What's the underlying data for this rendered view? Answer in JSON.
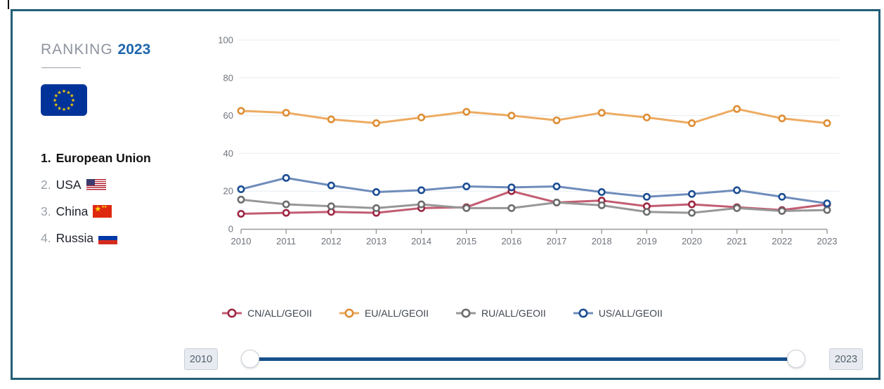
{
  "ranking": {
    "title": "RANKING",
    "year": "2023",
    "items": [
      {
        "rank": "1.",
        "name": "European Union"
      },
      {
        "rank": "2.",
        "name": "USA"
      },
      {
        "rank": "3.",
        "name": "China"
      },
      {
        "rank": "4.",
        "name": "Russia"
      }
    ]
  },
  "chart_data": {
    "type": "line",
    "x": [
      2010,
      2011,
      2012,
      2013,
      2014,
      2015,
      2016,
      2017,
      2018,
      2019,
      2020,
      2021,
      2022,
      2023
    ],
    "series": [
      {
        "name": "CN/ALL/GEOII",
        "line_color": "#c25c72",
        "marker_color": "#9c2743",
        "values": [
          8,
          8.5,
          9,
          8.5,
          11,
          11.5,
          20,
          14,
          15,
          12,
          13,
          11.5,
          10,
          13
        ]
      },
      {
        "name": "EU/ALL/GEOII",
        "line_color": "#edab62",
        "marker_color": "#dd8e35",
        "values": [
          62.5,
          61.5,
          58,
          56,
          59,
          62,
          60,
          57.5,
          61.5,
          59,
          56,
          63.5,
          58.5,
          56
        ]
      },
      {
        "name": "RU/ALL/GEOII",
        "line_color": "#979797",
        "marker_color": "#6d6d6d",
        "values": [
          15.5,
          13,
          12,
          11,
          13,
          11,
          11,
          14,
          12.5,
          9,
          8.5,
          11,
          9.5,
          10
        ]
      },
      {
        "name": "US/ALL/GEOII",
        "line_color": "#6f8cbb",
        "marker_color": "#1c4e94",
        "values": [
          21,
          27,
          23,
          19.5,
          20.5,
          22.5,
          22,
          22.5,
          19.5,
          17,
          18.5,
          20.5,
          17,
          13.5
        ]
      }
    ],
    "ylim": [
      0,
      100
    ],
    "yticks": [
      0,
      20,
      40,
      60,
      80,
      100
    ],
    "grid": true,
    "legend_position": "bottom",
    "axis_color": "#999999",
    "grid_color": "#e9eef3",
    "tick_label_color": "#6e737b"
  },
  "slider": {
    "min_label": "2010",
    "max_label": "2023"
  }
}
